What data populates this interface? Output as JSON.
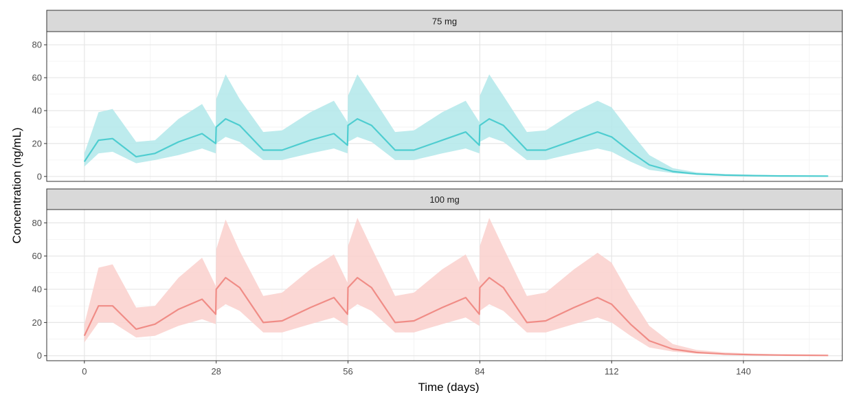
{
  "chart_data": {
    "type": "area",
    "xlabel": "Time (days)",
    "ylabel": "Concentration (ng/mL)",
    "xlim": [
      -8,
      161
    ],
    "x_ticks": [
      0,
      28,
      56,
      84,
      112,
      140
    ],
    "grid": true,
    "facets": [
      {
        "label": "75 mg",
        "ylim": [
          -3,
          88
        ],
        "y_ticks": [
          0,
          20,
          40,
          60,
          80
        ],
        "color": "#4ECDD0",
        "band_color": "#B2E7EA",
        "x": [
          0,
          3,
          6,
          11,
          15,
          20,
          25,
          27.9,
          28,
          30,
          33,
          38,
          42,
          48,
          53,
          55.9,
          56,
          58,
          61,
          66,
          70,
          76,
          81,
          83.9,
          84,
          86,
          89,
          94,
          98,
          104,
          109,
          112,
          116,
          120,
          125,
          130,
          136,
          142,
          148,
          158
        ],
        "median": [
          9,
          22,
          23,
          12,
          14,
          21,
          26,
          20,
          30,
          35,
          31,
          16,
          16,
          22,
          26,
          19,
          31,
          35,
          31,
          16,
          16,
          22,
          27,
          19,
          31,
          35,
          31,
          16,
          16,
          22,
          27,
          24,
          15,
          7,
          3,
          1.5,
          0.8,
          0.5,
          0.3,
          0.2
        ],
        "lower": [
          6,
          14,
          15,
          8,
          10,
          13,
          17,
          14,
          20,
          24,
          21,
          10,
          10,
          14,
          17,
          14,
          21,
          24,
          21,
          10,
          10,
          14,
          17,
          14,
          21,
          24,
          21,
          10,
          10,
          14,
          17,
          15,
          9,
          4,
          2,
          1,
          0.5,
          0.3,
          0.2,
          0.1
        ],
        "upper": [
          14,
          39,
          41,
          21,
          22,
          35,
          44,
          30,
          47,
          62,
          47,
          27,
          28,
          39,
          46,
          33,
          49,
          62,
          49,
          27,
          28,
          39,
          46,
          33,
          49,
          62,
          49,
          27,
          28,
          39,
          46,
          42,
          27,
          13,
          5,
          2.5,
          1.5,
          1,
          0.6,
          0.4
        ]
      },
      {
        "label": "100 mg",
        "ylim": [
          -3,
          88
        ],
        "y_ticks": [
          0,
          20,
          40,
          60,
          80
        ],
        "color": "#F08C86",
        "band_color": "#FAD0CD",
        "x": [
          0,
          3,
          6,
          11,
          15,
          20,
          25,
          27.9,
          28,
          30,
          33,
          38,
          42,
          48,
          53,
          55.9,
          56,
          58,
          61,
          66,
          70,
          76,
          81,
          83.9,
          84,
          86,
          89,
          94,
          98,
          104,
          109,
          112,
          116,
          120,
          125,
          130,
          136,
          142,
          148,
          158
        ],
        "median": [
          12,
          30,
          30,
          16,
          19,
          28,
          34,
          25,
          40,
          47,
          41,
          20,
          21,
          29,
          35,
          25,
          41,
          47,
          41,
          20,
          21,
          29,
          35,
          25,
          41,
          47,
          41,
          20,
          21,
          29,
          35,
          31,
          19,
          9,
          4,
          2,
          1,
          0.6,
          0.4,
          0.2
        ],
        "lower": [
          8,
          20,
          20,
          11,
          12,
          18,
          22,
          19,
          27,
          31,
          27,
          14,
          14,
          19,
          23,
          18,
          27,
          31,
          27,
          14,
          14,
          19,
          23,
          18,
          27,
          31,
          27,
          14,
          14,
          19,
          23,
          20,
          12,
          5,
          2.5,
          1.2,
          0.6,
          0.4,
          0.2,
          0.1
        ],
        "upper": [
          19,
          53,
          55,
          29,
          30,
          47,
          59,
          42,
          64,
          82,
          63,
          36,
          38,
          52,
          61,
          44,
          66,
          83,
          65,
          36,
          38,
          52,
          61,
          44,
          66,
          83,
          65,
          36,
          38,
          52,
          62,
          56,
          36,
          18,
          7,
          3.5,
          2,
          1.3,
          0.8,
          0.5
        ]
      }
    ]
  }
}
